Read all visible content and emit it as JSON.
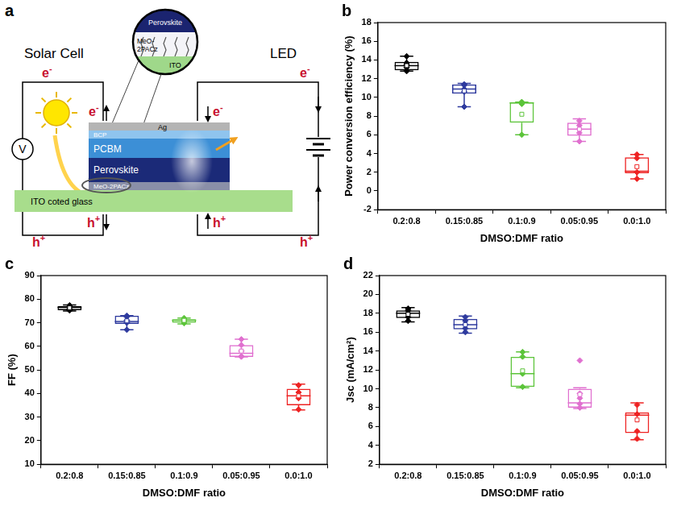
{
  "diagram": {
    "panel": "a",
    "solar_cell": "Solar Cell",
    "led": "LED",
    "electron": [
      "e",
      "-"
    ],
    "hole": [
      "h",
      "+"
    ],
    "voltmeter": "V",
    "layers": {
      "ag": "Ag",
      "bcp": "BCP",
      "pcbm": "PCBM",
      "perovskite": "Perovskite",
      "htl": "MeO-2PACz"
    },
    "substrate": "ITO  coted glass",
    "inset": {
      "top": "Perovskite",
      "middle": "MeO-2PACz",
      "bottom": "ITO"
    }
  },
  "chart_data": [
    {
      "panel": "b",
      "type": "box",
      "x_label": "DMSO:DMF ratio",
      "y_label": "Power conversion efficiency (%)",
      "categories": [
        "0.2:0.8",
        "0.15:0.85",
        "0.1:0.9",
        "0.05:0.95",
        "0.0:1.0"
      ],
      "colors": [
        "#000000",
        "#2e3a9e",
        "#5cc43a",
        "#e070cf",
        "#ee2222"
      ],
      "boxes": [
        {
          "min": 12.8,
          "q1": 12.9,
          "median": 13.4,
          "q3": 13.8,
          "max": 14.4,
          "mean": 13.4,
          "points": [
            12.8,
            12.9,
            13.2,
            13.5,
            13.7,
            14.4
          ]
        },
        {
          "min": 9.0,
          "q1": 10.4,
          "median": 10.9,
          "q3": 11.4,
          "max": 11.5,
          "mean": 10.7,
          "points": [
            9.0,
            10.6,
            10.9,
            11.3,
            11.4
          ]
        },
        {
          "min": 6.0,
          "q1": 7.3,
          "median": 9.4,
          "q3": 9.5,
          "max": 9.5,
          "mean": 8.2,
          "points": [
            6.0,
            9.3,
            9.5,
            9.5
          ]
        },
        {
          "min": 5.3,
          "q1": 5.9,
          "median": 6.6,
          "q3": 7.3,
          "max": 7.7,
          "mean": 6.6,
          "points": [
            5.3,
            6.2,
            6.6,
            7.0,
            7.5
          ]
        },
        {
          "min": 1.3,
          "q1": 1.9,
          "median": 2.1,
          "q3": 3.6,
          "max": 3.9,
          "mean": 2.6,
          "points": [
            1.3,
            2.0,
            3.5,
            3.9
          ]
        }
      ],
      "ylim": [
        -2,
        18
      ],
      "yticks": [
        -2,
        0,
        2,
        4,
        6,
        8,
        10,
        12,
        14,
        16,
        18
      ],
      "grid": false
    },
    {
      "panel": "c",
      "type": "box",
      "x_label": "DMSO:DMF ratio",
      "y_label": "FF (%)",
      "categories": [
        "0.2:0.8",
        "0.15:0.85",
        "0.1:0.9",
        "0.05:0.95",
        "0.0:1.0"
      ],
      "colors": [
        "#000000",
        "#2e3a9e",
        "#5cc43a",
        "#e070cf",
        "#ee2222"
      ],
      "boxes": [
        {
          "min": 75.0,
          "q1": 75.3,
          "median": 76.5,
          "q3": 77.0,
          "max": 77.5,
          "mean": 76.3,
          "points": [
            75.2,
            75.8,
            76.6,
            77.0,
            77.4
          ]
        },
        {
          "min": 67.0,
          "q1": 69.5,
          "median": 70.5,
          "q3": 73.0,
          "max": 73.0,
          "mean": 70.8,
          "points": [
            67.0,
            70.0,
            71.0,
            72.5,
            73.0
          ]
        },
        {
          "min": 69.5,
          "q1": 70.0,
          "median": 71.0,
          "q3": 71.5,
          "max": 72.0,
          "mean": 71.0,
          "points": [
            69.8,
            70.5,
            71.0,
            71.5,
            72.0
          ]
        },
        {
          "min": 55.5,
          "q1": 55.5,
          "median": 57.0,
          "q3": 60.5,
          "max": 63.0,
          "mean": 58.0,
          "points": [
            55.6,
            55.8,
            58.0,
            60.5,
            63.0
          ]
        },
        {
          "min": 33.0,
          "q1": 35.0,
          "median": 39.0,
          "q3": 42.0,
          "max": 44.0,
          "mean": 39.0,
          "points": [
            33.2,
            38.0,
            40.5,
            43.5
          ]
        }
      ],
      "ylim": [
        10,
        90
      ],
      "yticks": [
        10,
        20,
        30,
        40,
        50,
        60,
        70,
        80,
        90
      ],
      "grid": false
    },
    {
      "panel": "d",
      "type": "box",
      "x_label": "DMSO:DMF ratio",
      "y_label": "Jsc (mA/cm²)",
      "categories": [
        "0.2:0.8",
        "0.15:0.85",
        "0.1:0.9",
        "0.05:0.95",
        "0.0:1.0"
      ],
      "colors": [
        "#000000",
        "#2e3a9e",
        "#5cc43a",
        "#e070cf",
        "#ee2222"
      ],
      "boxes": [
        {
          "min": 17.1,
          "q1": 17.5,
          "median": 18.0,
          "q3": 18.3,
          "max": 18.6,
          "mean": 17.9,
          "points": [
            17.2,
            17.6,
            18.0,
            18.3,
            18.5
          ]
        },
        {
          "min": 15.9,
          "q1": 16.3,
          "median": 16.8,
          "q3": 17.4,
          "max": 17.7,
          "mean": 16.8,
          "points": [
            16.0,
            16.4,
            16.8,
            17.2,
            17.6
          ]
        },
        {
          "min": 10.1,
          "q1": 10.2,
          "median": 11.6,
          "q3": 13.4,
          "max": 13.9,
          "mean": 11.9,
          "points": [
            10.2,
            11.6,
            13.4,
            13.9
          ]
        },
        {
          "min": 7.9,
          "q1": 8.0,
          "median": 8.5,
          "q3": 10.0,
          "max": 10.1,
          "mean": 9.4,
          "points": [
            8.0,
            8.4,
            9.0,
            9.5,
            13.0
          ]
        },
        {
          "min": 4.6,
          "q1": 5.3,
          "median": 7.2,
          "q3": 7.5,
          "max": 8.5,
          "mean": 6.7,
          "points": [
            4.7,
            5.5,
            7.3,
            8.3
          ]
        }
      ],
      "ylim": [
        2,
        22
      ],
      "yticks": [
        2,
        4,
        6,
        8,
        10,
        12,
        14,
        16,
        18,
        20,
        22
      ],
      "grid": false
    }
  ]
}
